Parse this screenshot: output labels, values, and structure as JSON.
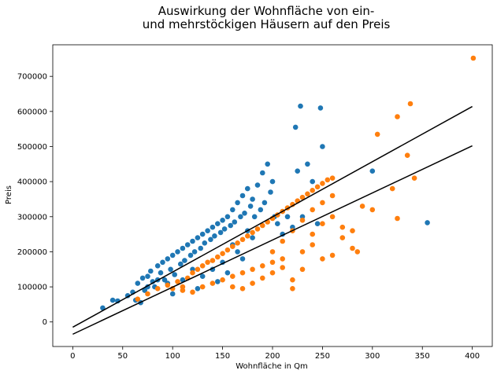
{
  "chart_data": {
    "type": "scatter",
    "title_lines": [
      "Auswirkung der Wohnfläche von ein-",
      "und mehrstöckigen Häusern auf den Preis"
    ],
    "xlabel": "Wohnfläche in Qm",
    "ylabel": "Preis",
    "xlim": [
      -20,
      420
    ],
    "ylim": [
      -70000,
      790000
    ],
    "x_ticks": [
      0,
      50,
      100,
      150,
      200,
      250,
      300,
      350,
      400
    ],
    "y_ticks": [
      0,
      100000,
      200000,
      300000,
      400000,
      500000,
      600000,
      700000
    ],
    "grid": false,
    "series": [
      {
        "color": "#1f77b4",
        "points": [
          [
            30,
            40000
          ],
          [
            40,
            62000
          ],
          [
            45,
            60000
          ],
          [
            55,
            75000
          ],
          [
            60,
            85000
          ],
          [
            63,
            62000
          ],
          [
            65,
            110000
          ],
          [
            68,
            55000
          ],
          [
            70,
            125000
          ],
          [
            72,
            90000
          ],
          [
            75,
            130000
          ],
          [
            78,
            145000
          ],
          [
            80,
            115000
          ],
          [
            82,
            100000
          ],
          [
            85,
            160000
          ],
          [
            88,
            140000
          ],
          [
            90,
            170000
          ],
          [
            92,
            120000
          ],
          [
            95,
            180000
          ],
          [
            98,
            150000
          ],
          [
            100,
            190000
          ],
          [
            102,
            135000
          ],
          [
            105,
            200000
          ],
          [
            108,
            165000
          ],
          [
            110,
            210000
          ],
          [
            112,
            175000
          ],
          [
            115,
            220000
          ],
          [
            118,
            190000
          ],
          [
            120,
            230000
          ],
          [
            122,
            200000
          ],
          [
            125,
            240000
          ],
          [
            128,
            210000
          ],
          [
            130,
            250000
          ],
          [
            132,
            225000
          ],
          [
            135,
            260000
          ],
          [
            138,
            235000
          ],
          [
            140,
            270000
          ],
          [
            142,
            245000
          ],
          [
            145,
            280000
          ],
          [
            148,
            255000
          ],
          [
            150,
            290000
          ],
          [
            152,
            265000
          ],
          [
            155,
            300000
          ],
          [
            158,
            275000
          ],
          [
            160,
            320000
          ],
          [
            162,
            285000
          ],
          [
            165,
            340000
          ],
          [
            168,
            300000
          ],
          [
            170,
            360000
          ],
          [
            172,
            310000
          ],
          [
            175,
            380000
          ],
          [
            178,
            330000
          ],
          [
            180,
            350000
          ],
          [
            182,
            300000
          ],
          [
            185,
            390000
          ],
          [
            188,
            320000
          ],
          [
            190,
            425000
          ],
          [
            192,
            340000
          ],
          [
            195,
            450000
          ],
          [
            198,
            370000
          ],
          [
            200,
            400000
          ],
          [
            202,
            300000
          ],
          [
            205,
            280000
          ],
          [
            210,
            250000
          ],
          [
            215,
            300000
          ],
          [
            220,
            270000
          ],
          [
            223,
            555000
          ],
          [
            225,
            430000
          ],
          [
            228,
            615000
          ],
          [
            230,
            300000
          ],
          [
            235,
            450000
          ],
          [
            240,
            400000
          ],
          [
            245,
            280000
          ],
          [
            248,
            610000
          ],
          [
            250,
            500000
          ],
          [
            300,
            430000
          ],
          [
            355,
            283000
          ],
          [
            130,
            130000
          ],
          [
            140,
            150000
          ],
          [
            160,
            220000
          ],
          [
            175,
            260000
          ],
          [
            120,
            150000
          ],
          [
            110,
            120000
          ],
          [
            150,
            170000
          ],
          [
            165,
            200000
          ],
          [
            180,
            240000
          ],
          [
            100,
            80000
          ],
          [
            125,
            95000
          ],
          [
            145,
            115000
          ],
          [
            155,
            140000
          ],
          [
            170,
            180000
          ],
          [
            95,
            110000
          ],
          [
            85,
            120000
          ],
          [
            75,
            100000
          ]
        ]
      },
      {
        "color": "#ff7f0e",
        "points": [
          [
            65,
            65000
          ],
          [
            75,
            80000
          ],
          [
            85,
            95000
          ],
          [
            95,
            105000
          ],
          [
            105,
            115000
          ],
          [
            110,
            90000
          ],
          [
            115,
            125000
          ],
          [
            120,
            140000
          ],
          [
            125,
            150000
          ],
          [
            130,
            160000
          ],
          [
            135,
            170000
          ],
          [
            140,
            175000
          ],
          [
            145,
            185000
          ],
          [
            150,
            195000
          ],
          [
            155,
            205000
          ],
          [
            160,
            215000
          ],
          [
            165,
            225000
          ],
          [
            170,
            235000
          ],
          [
            175,
            245000
          ],
          [
            180,
            255000
          ],
          [
            185,
            265000
          ],
          [
            190,
            275000
          ],
          [
            195,
            285000
          ],
          [
            200,
            295000
          ],
          [
            205,
            305000
          ],
          [
            210,
            315000
          ],
          [
            215,
            325000
          ],
          [
            220,
            335000
          ],
          [
            225,
            345000
          ],
          [
            230,
            355000
          ],
          [
            235,
            365000
          ],
          [
            240,
            375000
          ],
          [
            245,
            385000
          ],
          [
            250,
            395000
          ],
          [
            255,
            405000
          ],
          [
            260,
            410000
          ],
          [
            230,
            200000
          ],
          [
            240,
            250000
          ],
          [
            250,
            280000
          ],
          [
            260,
            300000
          ],
          [
            270,
            240000
          ],
          [
            280,
            210000
          ],
          [
            285,
            200000
          ],
          [
            300,
            320000
          ],
          [
            305,
            535000
          ],
          [
            320,
            380000
          ],
          [
            325,
            585000
          ],
          [
            325,
            295000
          ],
          [
            335,
            475000
          ],
          [
            338,
            622000
          ],
          [
            342,
            410000
          ],
          [
            401,
            752000
          ],
          [
            140,
            110000
          ],
          [
            150,
            120000
          ],
          [
            160,
            130000
          ],
          [
            170,
            140000
          ],
          [
            180,
            150000
          ],
          [
            190,
            160000
          ],
          [
            200,
            170000
          ],
          [
            210,
            180000
          ],
          [
            220,
            120000
          ],
          [
            230,
            150000
          ],
          [
            160,
            100000
          ],
          [
            170,
            95000
          ],
          [
            180,
            110000
          ],
          [
            190,
            125000
          ],
          [
            200,
            140000
          ],
          [
            210,
            155000
          ],
          [
            130,
            100000
          ],
          [
            120,
            85000
          ],
          [
            110,
            100000
          ],
          [
            100,
            95000
          ],
          [
            220,
            95000
          ],
          [
            240,
            220000
          ],
          [
            250,
            180000
          ],
          [
            260,
            190000
          ],
          [
            270,
            270000
          ],
          [
            280,
            260000
          ],
          [
            290,
            330000
          ],
          [
            200,
            200000
          ],
          [
            210,
            230000
          ],
          [
            220,
            260000
          ],
          [
            230,
            290000
          ],
          [
            240,
            320000
          ],
          [
            250,
            340000
          ],
          [
            260,
            360000
          ]
        ]
      }
    ],
    "lines": [
      {
        "color": "#000000",
        "x": [
          0,
          400
        ],
        "y": [
          -15000,
          614000
        ]
      },
      {
        "color": "#000000",
        "x": [
          0,
          400
        ],
        "y": [
          -35000,
          502000
        ]
      }
    ]
  }
}
